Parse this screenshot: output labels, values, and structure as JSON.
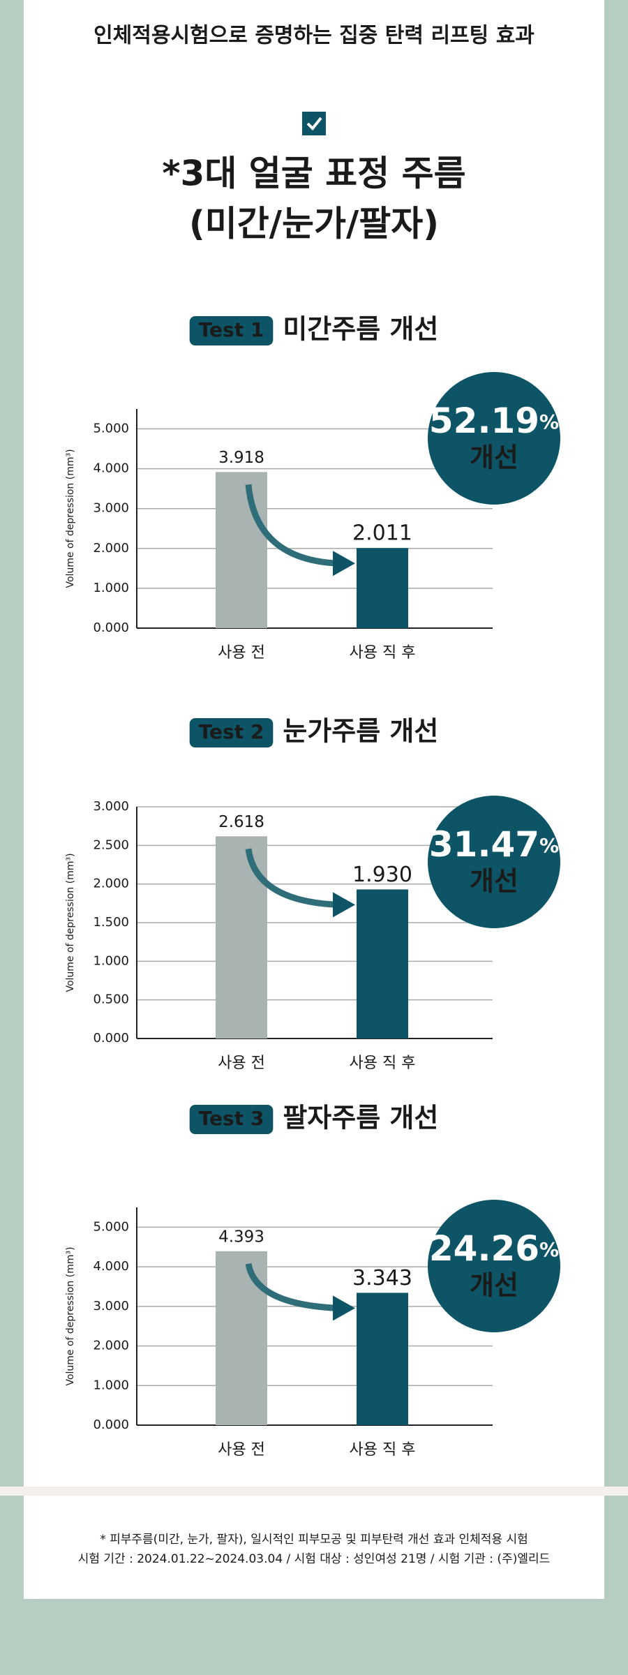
{
  "header": {
    "title": "인체적용시험으로 증명하는 집중 탄력 리프팅 효과",
    "heading": [
      "*3대 얼굴 표정 주름",
      "(미간/눈가/팔자)"
    ]
  },
  "chart_data": [
    {
      "type": "bar",
      "badge": "Test 1",
      "title": "미간주름 개선",
      "ylabel": "Volume of depression (mm³)",
      "categories": [
        "사용 전",
        "사용 직 후"
      ],
      "values": [
        3.918,
        2.011
      ],
      "value_labels": [
        "3.918",
        "2.011"
      ],
      "colors": [
        "#a9b4b2",
        "#0d5566"
      ],
      "ylim": [
        0,
        5.5
      ],
      "yticks": [
        {
          "value": 0,
          "label": "0.000"
        },
        {
          "value": 1,
          "label": "1.000"
        },
        {
          "value": 2,
          "label": "2.000"
        },
        {
          "value": 3,
          "label": "3.000"
        },
        {
          "value": 4,
          "label": "4.000"
        },
        {
          "value": 5,
          "label": "5.000"
        }
      ],
      "grid": true,
      "improvement": 52.19,
      "improvement_unit": "%",
      "improvement_caption": "개선"
    },
    {
      "type": "bar",
      "badge": "Test 2",
      "title": "눈가주름 개선",
      "ylabel": "Volume of depression (mm³)",
      "categories": [
        "사용 전",
        "사용 직 후"
      ],
      "values": [
        2.618,
        1.93
      ],
      "value_labels": [
        "2.618",
        "1.930"
      ],
      "colors": [
        "#a9b4b2",
        "#0d5566"
      ],
      "ylim": [
        0,
        3
      ],
      "yticks": [
        {
          "value": 0,
          "label": "0.000"
        },
        {
          "value": 0.5,
          "label": "0.500"
        },
        {
          "value": 1,
          "label": "1.000"
        },
        {
          "value": 1.5,
          "label": "1.500"
        },
        {
          "value": 2,
          "label": "2.000"
        },
        {
          "value": 2.5,
          "label": "2.500"
        },
        {
          "value": 3,
          "label": "3.000"
        }
      ],
      "grid": true,
      "improvement": 31.47,
      "improvement_unit": "%",
      "improvement_caption": "개선"
    },
    {
      "type": "bar",
      "badge": "Test 3",
      "title": "팔자주름 개선",
      "ylabel": "Volume of depression (mm³)",
      "categories": [
        "사용 전",
        "사용 직 후"
      ],
      "values": [
        4.393,
        3.343
      ],
      "value_labels": [
        "4.393",
        "3.343"
      ],
      "colors": [
        "#a9b4b2",
        "#0d5566"
      ],
      "ylim": [
        0,
        5.5
      ],
      "yticks": [
        {
          "value": 0,
          "label": "0.000"
        },
        {
          "value": 1,
          "label": "1.000"
        },
        {
          "value": 2,
          "label": "2.000"
        },
        {
          "value": 3,
          "label": "3.000"
        },
        {
          "value": 4,
          "label": "4.000"
        },
        {
          "value": 5,
          "label": "5.000"
        }
      ],
      "grid": true,
      "improvement": 24.26,
      "improvement_unit": "%",
      "improvement_caption": "개선"
    }
  ],
  "footer": [
    "* 피부주름(미간, 눈가, 팔자), 일시적인 피부모공 및 피부탄력 개선 효과 인체적용 시험",
    "시험 기간 : 2024.01.22~2024.03.04 / 시험 대상 : 성인여성 21명 / 시험 기관 : (주)엘리드"
  ]
}
